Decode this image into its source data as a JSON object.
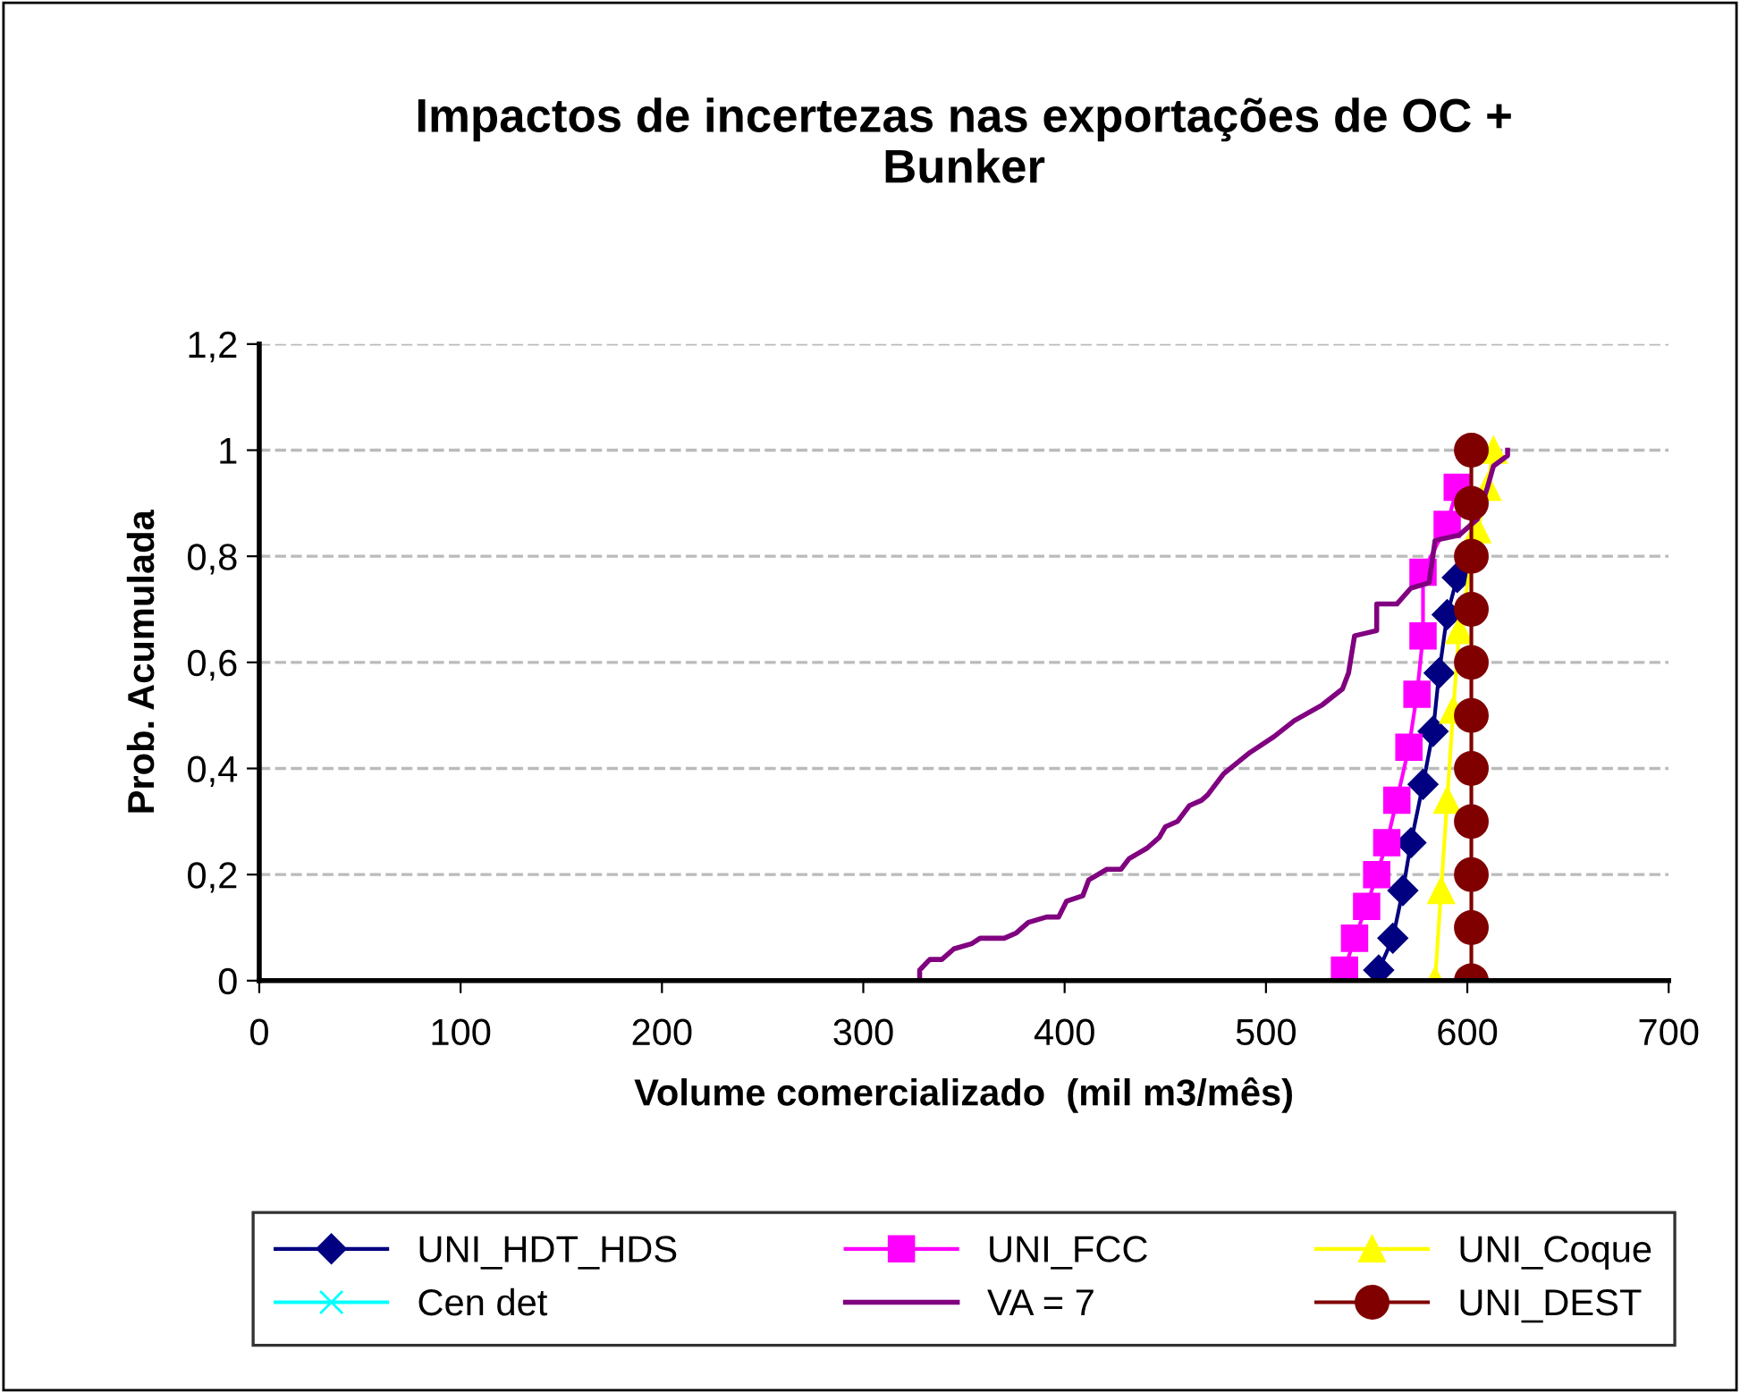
{
  "chart_data": {
    "type": "line",
    "title": "Impactos de incertezas nas exportações de OC +\nBunker",
    "xlabel": "Volume comercializado  (mil m3/mês)",
    "ylabel": "Prob. Acumulada",
    "xlim": [
      0,
      700
    ],
    "xticks": [
      0,
      100,
      200,
      300,
      400,
      500,
      600,
      700
    ],
    "ylim": [
      0,
      1.2
    ],
    "yticks": [
      {
        "value": 0,
        "label": "0"
      },
      {
        "value": 0.2,
        "label": "0,2"
      },
      {
        "value": 0.4,
        "label": "0,4"
      },
      {
        "value": 0.6,
        "label": "0,6"
      },
      {
        "value": 0.8,
        "label": "0,8"
      },
      {
        "value": 1,
        "label": "1"
      },
      {
        "value": 1.2,
        "label": "1,2"
      }
    ],
    "grid": "y",
    "legend": "bottom",
    "series": [
      {
        "name": "UNI_HDT_HDS",
        "color": "#000080",
        "marker": "diamond",
        "x": [
          556,
          563,
          568,
          572,
          578,
          583,
          586,
          590,
          595
        ],
        "values": [
          0.02,
          0.08,
          0.17,
          0.26,
          0.37,
          0.47,
          0.58,
          0.69,
          0.76
        ]
      },
      {
        "name": "UNI_FCC",
        "color": "#ff00ff",
        "marker": "square",
        "x": [
          539,
          544,
          550,
          555,
          560,
          565,
          571,
          575,
          578,
          578,
          590,
          595
        ],
        "values": [
          0.02,
          0.08,
          0.14,
          0.2,
          0.26,
          0.34,
          0.44,
          0.54,
          0.65,
          0.77,
          0.86,
          0.93
        ]
      },
      {
        "name": "UNI_Coque",
        "color": "#ffff00",
        "marker": "triangle",
        "x": [
          584,
          587,
          590,
          593,
          596,
          605,
          610,
          613
        ],
        "values": [
          0.0,
          0.17,
          0.34,
          0.51,
          0.66,
          0.85,
          0.93,
          1.0
        ]
      },
      {
        "name": "Cen det",
        "color": "#00ffff",
        "marker": "cross"
      },
      {
        "name": "VA = 7",
        "color": "#800080",
        "marker": "none",
        "x": [
          328,
          328,
          333,
          339,
          345,
          354,
          358,
          370,
          376,
          382,
          391,
          397,
          401,
          409,
          412,
          421,
          428,
          432,
          441,
          447,
          450,
          456,
          462,
          468,
          471,
          479,
          492,
          504,
          514,
          528,
          538,
          541,
          544,
          555,
          555,
          565,
          572,
          581,
          584,
          596,
          605,
          610,
          613,
          620,
          620
        ],
        "values": [
          0.0,
          0.02,
          0.04,
          0.04,
          0.06,
          0.07,
          0.08,
          0.08,
          0.09,
          0.11,
          0.12,
          0.12,
          0.15,
          0.16,
          0.19,
          0.21,
          0.21,
          0.23,
          0.25,
          0.27,
          0.29,
          0.3,
          0.33,
          0.34,
          0.35,
          0.39,
          0.43,
          0.46,
          0.49,
          0.52,
          0.55,
          0.58,
          0.65,
          0.66,
          0.71,
          0.71,
          0.74,
          0.75,
          0.83,
          0.84,
          0.87,
          0.93,
          0.97,
          0.99,
          1.0
        ]
      },
      {
        "name": "UNI_DEST",
        "color": "#800000",
        "marker": "circle",
        "x": [
          602,
          602,
          602,
          602,
          602,
          602,
          602,
          602,
          602,
          602,
          602
        ],
        "values": [
          0.0,
          0.1,
          0.2,
          0.3,
          0.4,
          0.5,
          0.6,
          0.7,
          0.8,
          0.9,
          1.0
        ]
      }
    ]
  }
}
